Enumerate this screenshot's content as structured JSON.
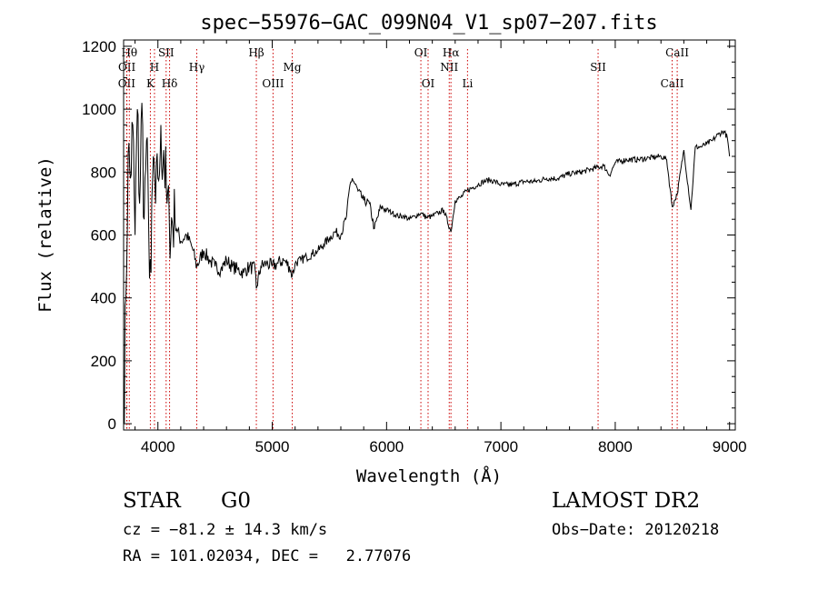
{
  "chart_data": {
    "type": "line",
    "title": "spec−55976−GAC_099N04_V1_sp07−207.fits",
    "xlabel": "Wavelength (Å)",
    "ylabel": "Flux (relative)",
    "xlim": [
      3700,
      9050
    ],
    "ylim": [
      -20,
      1220
    ],
    "xticks": [
      4000,
      5000,
      6000,
      7000,
      8000,
      9000
    ],
    "yticks": [
      0,
      200,
      400,
      600,
      800,
      1000,
      1200
    ],
    "xticklabels": [
      "4000",
      "5000",
      "6000",
      "7000",
      "8000",
      "9000"
    ],
    "yticklabels": [
      "0",
      "200",
      "400",
      "600",
      "800",
      "1000",
      "1200"
    ],
    "grid": false,
    "line_color": "#000000",
    "marker_color": "#cc0000",
    "series": [
      {
        "x": [
          3700,
          3720,
          3740,
          3760,
          3780,
          3800,
          3820,
          3840,
          3860,
          3880,
          3900,
          3920,
          3940,
          3960,
          3980,
          4000,
          4020,
          4050,
          4080,
          4100,
          4150,
          4200,
          4250,
          4300,
          4340,
          4400,
          4450,
          4500,
          4550,
          4600,
          4650,
          4700,
          4750,
          4800,
          4850,
          4861,
          4900,
          4950,
          5000,
          5050,
          5100,
          5150,
          5175,
          5200,
          5250,
          5300,
          5350,
          5400,
          5450,
          5500,
          5550,
          5600,
          5650,
          5680,
          5700,
          5750,
          5800,
          5850,
          5893,
          5950,
          6000,
          6050,
          6100,
          6150,
          6200,
          6250,
          6300,
          6350,
          6400,
          6450,
          6500,
          6563,
          6600,
          6650,
          6700,
          6800,
          6850,
          6900,
          6950,
          7000,
          7100,
          7200,
          7300,
          7400,
          7500,
          7600,
          7700,
          7800,
          7900,
          7950,
          8000,
          8100,
          8200,
          8300,
          8400,
          8450,
          8498,
          8542,
          8600,
          8662,
          8700,
          8750,
          8800,
          8850,
          8900,
          8950,
          8980,
          9000
        ],
        "y": [
          0,
          400,
          860,
          780,
          950,
          600,
          1000,
          700,
          1020,
          650,
          900,
          600,
          480,
          850,
          700,
          780,
          860,
          870,
          700,
          640,
          640,
          580,
          600,
          560,
          500,
          550,
          520,
          500,
          490,
          520,
          500,
          490,
          480,
          500,
          490,
          430,
          500,
          510,
          500,
          510,
          520,
          500,
          470,
          510,
          520,
          530,
          540,
          550,
          570,
          590,
          610,
          600,
          660,
          760,
          780,
          740,
          710,
          700,
          620,
          690,
          680,
          670,
          660,
          660,
          650,
          660,
          670,
          655,
          660,
          670,
          680,
          610,
          710,
          720,
          740,
          760,
          770,
          775,
          770,
          760,
          760,
          770,
          770,
          780,
          780,
          795,
          800,
          810,
          820,
          790,
          830,
          840,
          840,
          845,
          850,
          840,
          690,
          730,
          870,
          680,
          880,
          880,
          890,
          900,
          920,
          930,
          910,
          850
        ]
      }
    ],
    "line_markers": [
      {
        "x": 3727,
        "label": "OII",
        "row": "top3"
      },
      {
        "x": 3729,
        "label": "OII",
        "row": "top2"
      },
      {
        "x": 3750,
        "label": "Hθ",
        "row": "top1"
      },
      {
        "x": 3934,
        "label": "K",
        "row": "top3"
      },
      {
        "x": 3970,
        "label": "H",
        "row": "top2"
      },
      {
        "x": 4072,
        "label": "SII",
        "row": "top1"
      },
      {
        "x": 4102,
        "label": "Hδ",
        "row": "top3"
      },
      {
        "x": 4340,
        "label": "Hγ",
        "row": "top2"
      },
      {
        "x": 4861,
        "label": "Hβ",
        "row": "top1"
      },
      {
        "x": 5007,
        "label": "OIII",
        "row": "top3"
      },
      {
        "x": 5175,
        "label": "Mg",
        "row": "top2"
      },
      {
        "x": 6300,
        "label": "OI",
        "row": "top1"
      },
      {
        "x": 6363,
        "label": "OI",
        "row": "top3"
      },
      {
        "x": 6548,
        "label": "NII",
        "row": "top2"
      },
      {
        "x": 6563,
        "label": "Hα",
        "row": "top1"
      },
      {
        "x": 6708,
        "label": "Li",
        "row": "top3"
      },
      {
        "x": 7850,
        "label": "SII",
        "row": "top2"
      },
      {
        "x": 8498,
        "label": "CaII",
        "row": "top3"
      },
      {
        "x": 8542,
        "label": "CaII",
        "row": "top1"
      }
    ]
  },
  "footer": {
    "object_type": "STAR",
    "subclass": "G0",
    "survey": "LAMOST DR2",
    "cz": "cz = −81.2 ± 14.3 km/s",
    "obs_date": "Obs−Date: 20120218",
    "coords": "RA = 101.02034, DEC =   2.77076"
  }
}
